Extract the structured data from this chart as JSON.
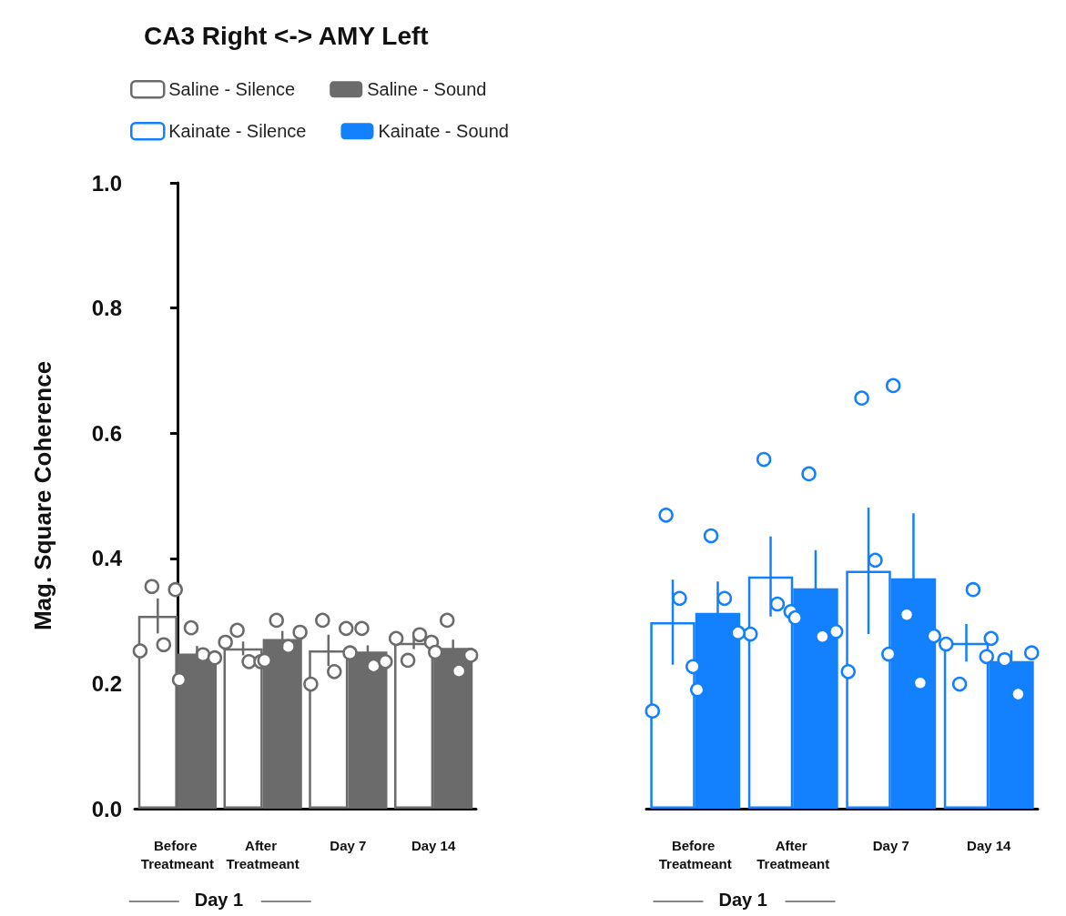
{
  "chart_data": [
    {
      "type": "bar",
      "title": "CA3 Right <-> AMY Left",
      "ylabel": "Mag. Square Coherence",
      "categories": [
        "Before Treatmeant",
        "After Treatmeant",
        "Day 7",
        "Day 14"
      ],
      "ylim": [
        0,
        1
      ],
      "yticks": [
        {
          "value": 0,
          "label": "0.0"
        },
        0.2,
        0.4,
        0.6,
        0.8,
        {
          "value": 1,
          "label": "1.0"
        }
      ],
      "legend": "top left",
      "marker": "circle",
      "annotations": [
        "Day 1"
      ],
      "series": [
        {
          "name": "Saline - Silence",
          "color": "#6b6b6b",
          "values": [
            0.308,
            0.256,
            0.253,
            0.265
          ],
          "errors": [
            0.028,
            0.011,
            0.025,
            0.01
          ]
        },
        {
          "name": "Saline - Sound",
          "color": "#6b6b6b",
          "values": [
            0.248,
            0.271,
            0.251,
            0.257
          ],
          "errors": [
            0.012,
            0.013,
            0.01,
            0.013
          ]
        },
        {
          "type": "scatter",
          "color": "#6b6b6b",
          "x": [
            "Before Treatmeant",
            "Before Treatmeant",
            "Before Treatmeant",
            "Before Treatmeant",
            "After Treatmeant",
            "After Treatmeant",
            "After Treatmeant",
            "After Treatmeant",
            "Day 7",
            "Day 7",
            "Day 7",
            "Day 7",
            "Day 14",
            "Day 14",
            "Day 14",
            "Day 14"
          ],
          "values": [
            0.252,
            0.355,
            0.262,
            0.35,
            0.266,
            0.285,
            0.235,
            0.235,
            0.199,
            0.301,
            0.219,
            0.288,
            0.272,
            0.237,
            0.278,
            0.266
          ]
        },
        {
          "type": "scatter",
          "color": "#6b6b6b",
          "x": [
            "Before Treatmeant",
            "Before Treatmeant",
            "Before Treatmeant",
            "Before Treatmeant",
            "After Treatmeant",
            "After Treatmeant",
            "After Treatmeant",
            "After Treatmeant",
            "Day 7",
            "Day 7",
            "Day 7",
            "Day 7",
            "Day 14",
            "Day 14",
            "Day 14",
            "Day 14"
          ],
          "values": [
            0.206,
            0.289,
            0.246,
            0.241,
            0.237,
            0.301,
            0.259,
            0.282,
            0.249,
            0.288,
            0.228,
            0.235,
            0.25,
            0.301,
            0.22,
            0.245
          ]
        }
      ]
    },
    {
      "type": "bar",
      "categories": [
        "Before Treatmeant",
        "After Treatmeant",
        "Day 7",
        "Day 14"
      ],
      "ylim": [
        0,
        1
      ],
      "tick_labels": "x",
      "legend": "top left",
      "marker": "circle",
      "annotations": [
        "Day 1"
      ],
      "series": [
        {
          "name": "Kainate - Silence",
          "color": "#1380fe",
          "values": [
            0.298,
            0.371,
            0.38,
            0.265
          ],
          "errors": [
            0.068,
            0.064,
            0.101,
            0.03
          ]
        },
        {
          "name": "Kainate - Sound",
          "color": "#1380fe",
          "values": [
            0.313,
            0.352,
            0.368,
            0.236
          ],
          "errors": [
            0.05,
            0.061,
            0.104,
            0.017
          ]
        },
        {
          "type": "scatter",
          "color": "#1380fe",
          "x": [
            "Before Treatmeant",
            "Before Treatmeant",
            "Before Treatmeant",
            "Before Treatmeant",
            "After Treatmeant",
            "After Treatmeant",
            "After Treatmeant",
            "After Treatmeant",
            "Day 7",
            "Day 7",
            "Day 7",
            "Day 7",
            "Day 14",
            "Day 14",
            "Day 14",
            "Day 14"
          ],
          "values": [
            0.156,
            0.469,
            0.336,
            0.227,
            0.279,
            0.558,
            0.327,
            0.315,
            0.219,
            0.656,
            0.397,
            0.247,
            0.263,
            0.199,
            0.35,
            0.243
          ]
        },
        {
          "type": "scatter",
          "color": "#1380fe",
          "x": [
            "Before Treatmeant",
            "Before Treatmeant",
            "Before Treatmeant",
            "Before Treatmeant",
            "After Treatmeant",
            "After Treatmeant",
            "After Treatmeant",
            "After Treatmeant",
            "Day 7",
            "Day 7",
            "Day 7",
            "Day 7",
            "Day 14",
            "Day 14",
            "Day 14",
            "Day 14"
          ],
          "values": [
            0.19,
            0.436,
            0.336,
            0.281,
            0.305,
            0.535,
            0.275,
            0.283,
            0.676,
            0.31,
            0.201,
            0.276,
            0.272,
            0.238,
            0.183,
            0.249
          ]
        }
      ]
    }
  ]
}
